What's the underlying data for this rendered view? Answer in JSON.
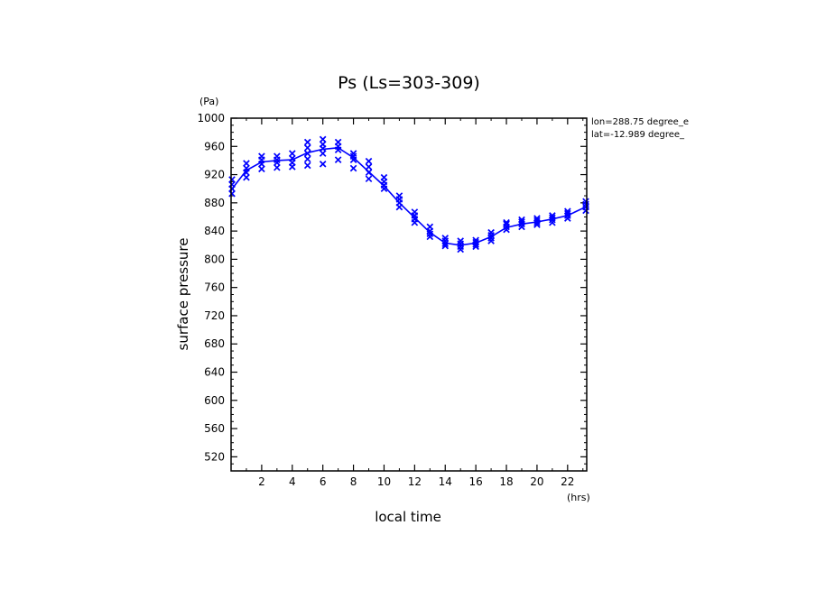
{
  "chart_data": {
    "type": "scatter",
    "title": "Ps (Ls=303-309)",
    "xlabel": "local time",
    "ylabel": "surface pressure",
    "x_unit": "(hrs)",
    "y_unit": "(Pa)",
    "xlim": [
      0,
      23.25
    ],
    "ylim": [
      500,
      1000
    ],
    "x_ticks": [
      2,
      4,
      6,
      8,
      10,
      12,
      14,
      16,
      18,
      20,
      22
    ],
    "y_ticks": [
      520,
      560,
      600,
      640,
      680,
      720,
      760,
      800,
      840,
      880,
      920,
      960,
      1000
    ],
    "annotations": [
      "lon=288.75 degree_e",
      "lat=-12.989 degree_"
    ],
    "series_color": "#0000ff",
    "series": [
      {
        "style": "line",
        "x": [
          0,
          1,
          2,
          3,
          4,
          5,
          6,
          7,
          8,
          9,
          10,
          11,
          12,
          13,
          14,
          15,
          16,
          17,
          18,
          19,
          20,
          21,
          22,
          23.25
        ],
        "values": [
          898,
          926,
          938,
          940,
          941,
          951,
          956,
          958,
          944,
          924,
          904,
          880,
          859,
          838,
          823,
          820,
          823,
          832,
          845,
          850,
          853,
          857,
          862,
          875
        ]
      },
      {
        "style": "markers",
        "x": [
          0,
          0,
          0,
          0,
          1,
          1,
          1,
          1,
          2,
          2,
          2,
          2,
          3,
          3,
          3,
          3,
          4,
          4,
          4,
          4,
          5,
          5,
          5,
          5,
          5,
          6,
          6,
          6,
          6,
          6,
          7,
          7,
          7,
          7,
          8,
          8,
          8,
          8,
          9,
          9,
          9,
          9,
          10,
          10,
          10,
          10,
          11,
          11,
          11,
          11,
          12,
          12,
          12,
          12,
          13,
          13,
          13,
          13,
          14,
          14,
          14,
          14,
          15,
          15,
          15,
          15,
          16,
          16,
          16,
          16,
          17,
          17,
          17,
          17,
          18,
          18,
          18,
          18,
          19,
          19,
          19,
          19,
          20,
          20,
          20,
          20,
          21,
          21,
          21,
          21,
          22,
          22,
          22,
          22,
          23.25,
          23.25,
          23.25,
          23.25
        ],
        "values": [
          893,
          900,
          906,
          913,
          916,
          923,
          929,
          936,
          928,
          935,
          941,
          946,
          930,
          937,
          941,
          946,
          931,
          937,
          943,
          950,
          933,
          942,
          950,
          958,
          966,
          935,
          950,
          957,
          963,
          970,
          941,
          955,
          960,
          966,
          929,
          941,
          946,
          950,
          914,
          923,
          931,
          939,
          900,
          905,
          910,
          916,
          874,
          880,
          885,
          890,
          852,
          857,
          862,
          867,
          832,
          836,
          840,
          846,
          819,
          822,
          826,
          830,
          814,
          818,
          822,
          826,
          818,
          821,
          824,
          827,
          826,
          830,
          834,
          838,
          842,
          846,
          850,
          852,
          846,
          850,
          853,
          856,
          849,
          852,
          855,
          858,
          852,
          856,
          859,
          862,
          858,
          862,
          865,
          868,
          869,
          874,
          878,
          882
        ]
      }
    ]
  }
}
